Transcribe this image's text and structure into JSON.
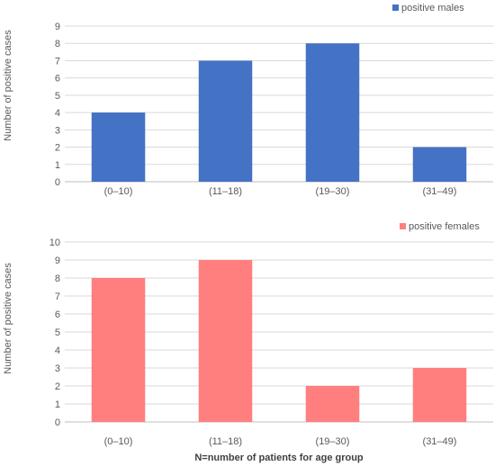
{
  "chart_data": [
    {
      "type": "bar",
      "categories": [
        "(0–10)",
        "(11–18)",
        "(19–30)",
        "(31–49)"
      ],
      "series": [
        {
          "name": "positive males",
          "values": [
            4,
            7,
            8,
            2
          ],
          "color": "#4472C4"
        }
      ],
      "ylabel": "Number of positive cases",
      "xlabel": "",
      "ylim": [
        0,
        9
      ],
      "ytick_step": 1,
      "grid": true,
      "legend": "top-right"
    },
    {
      "type": "bar",
      "categories": [
        "(0–10)",
        "(11–18)",
        "(19–30)",
        "(31–49)"
      ],
      "series": [
        {
          "name": "positive females",
          "values": [
            8,
            9,
            2,
            3
          ],
          "color": "#FF7F7F"
        }
      ],
      "ylabel": "Number of positive cases",
      "xlabel": "N=number of patients for age group",
      "ylim": [
        0,
        10
      ],
      "ytick_step": 1,
      "grid": true,
      "legend": "top-right"
    }
  ]
}
